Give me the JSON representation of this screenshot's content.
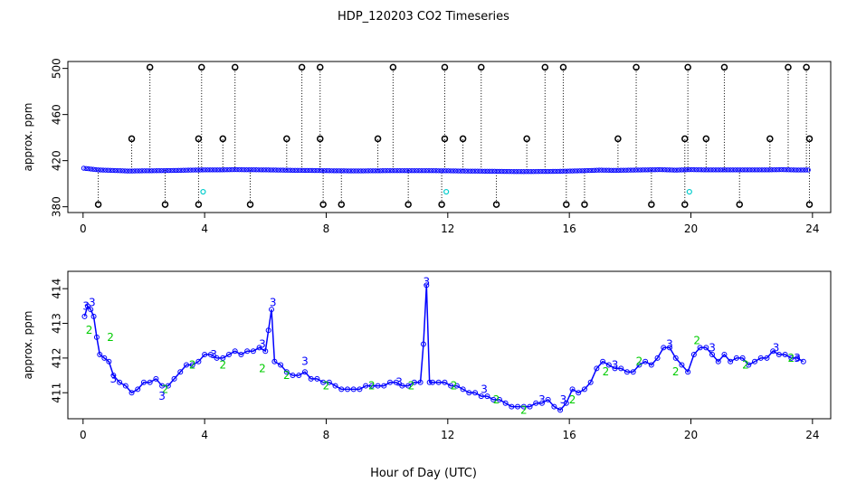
{
  "title": "HDP_120203  CO2 Timeseries",
  "xlabel": "Hour of Day (UTC)",
  "colors": {
    "points": "#0000ff",
    "highlight": "#00cccc",
    "flag2": "#00cc00",
    "flag3": "#0000ff",
    "outlier": "#000000"
  },
  "chart_data": [
    {
      "type": "scatter",
      "title": "",
      "xlabel": "",
      "ylabel": "approx. ppm",
      "xlim": [
        -0.5,
        24.6
      ],
      "ylim": [
        375,
        506
      ],
      "xticks": [
        0,
        4,
        8,
        12,
        16,
        20,
        24
      ],
      "yticks": [
        380,
        420,
        460,
        500
      ],
      "grid": false,
      "series": [
        {
          "values_desc": "main",
          "x": [
            0.0,
            0.5,
            1.0,
            1.5,
            2.0,
            2.5,
            3.0,
            3.5,
            4.0,
            4.5,
            5.0,
            5.5,
            6.0,
            6.5,
            7.0,
            7.5,
            8.0,
            8.5,
            9.0,
            9.5,
            10.0,
            10.5,
            11.0,
            11.5,
            12.0,
            12.5,
            13.0,
            13.5,
            14.0,
            14.5,
            15.0,
            15.5,
            16.0,
            16.5,
            17.0,
            17.5,
            18.0,
            18.5,
            19.0,
            19.5,
            20.0,
            20.5,
            21.0,
            21.5,
            22.0,
            22.5,
            23.0,
            23.5,
            23.8
          ],
          "y": [
            413.5,
            412.0,
            411.5,
            411.0,
            411.2,
            411.3,
            411.5,
            411.8,
            412.0,
            412.0,
            412.2,
            412.1,
            412.0,
            411.8,
            411.6,
            411.5,
            411.3,
            411.2,
            411.1,
            411.2,
            411.3,
            411.3,
            411.3,
            411.3,
            411.2,
            411.0,
            410.9,
            410.8,
            410.6,
            410.5,
            410.6,
            410.7,
            411.0,
            411.3,
            411.8,
            411.6,
            411.8,
            412.0,
            412.2,
            411.8,
            412.2,
            412.0,
            412.0,
            412.0,
            412.0,
            412.0,
            412.2,
            411.9,
            411.9
          ]
        }
      ],
      "outliers_high": [
        2.2,
        3.9,
        5.0,
        7.2,
        7.8,
        10.2,
        11.9,
        13.1,
        15.2,
        15.8,
        18.2,
        19.9,
        21.1,
        23.2,
        23.8
      ],
      "outliers_mid": [
        1.6,
        3.8,
        4.6,
        6.7,
        7.8,
        9.7,
        11.9,
        12.5,
        14.6,
        17.6,
        19.8,
        20.5,
        22.6,
        23.9
      ],
      "outliers_low": [
        0.5,
        2.7,
        3.8,
        5.5,
        7.9,
        8.5,
        10.7,
        11.8,
        13.6,
        15.9,
        16.5,
        18.7,
        19.8,
        21.6,
        23.9
      ],
      "cyan_points": [
        [
          3.95,
          393
        ],
        [
          11.95,
          393
        ],
        [
          19.95,
          393
        ]
      ],
      "high_value": 501,
      "mid_value": 439,
      "low_value": 382
    },
    {
      "type": "scatter",
      "title": "",
      "xlabel": "Hour of Day (UTC)",
      "ylabel": "approx. ppm",
      "xlim": [
        -0.5,
        24.6
      ],
      "ylim": [
        410.25,
        414.5
      ],
      "xticks": [
        0,
        4,
        8,
        12,
        16,
        20,
        24
      ],
      "yticks": [
        411,
        412,
        413,
        414
      ],
      "grid": false,
      "series": [
        {
          "x": [
            0.05,
            0.15,
            0.25,
            0.35,
            0.45,
            0.55,
            0.7,
            0.85,
            1.0,
            1.2,
            1.4,
            1.6,
            1.8,
            2.0,
            2.2,
            2.4,
            2.6,
            2.8,
            3.0,
            3.2,
            3.4,
            3.6,
            3.8,
            4.0,
            4.2,
            4.4,
            4.6,
            4.8,
            5.0,
            5.2,
            5.4,
            5.6,
            5.8,
            6.0,
            6.1,
            6.2,
            6.3,
            6.5,
            6.7,
            6.9,
            7.1,
            7.3,
            7.5,
            7.7,
            7.9,
            8.1,
            8.3,
            8.5,
            8.7,
            8.9,
            9.1,
            9.3,
            9.5,
            9.7,
            9.9,
            10.1,
            10.3,
            10.5,
            10.7,
            10.9,
            11.1,
            11.2,
            11.3,
            11.4,
            11.5,
            11.7,
            11.9,
            12.1,
            12.3,
            12.5,
            12.7,
            12.9,
            13.1,
            13.3,
            13.5,
            13.7,
            13.9,
            14.1,
            14.3,
            14.5,
            14.7,
            14.9,
            15.1,
            15.3,
            15.5,
            15.7,
            15.9,
            16.1,
            16.3,
            16.5,
            16.7,
            16.9,
            17.1,
            17.3,
            17.5,
            17.7,
            17.9,
            18.1,
            18.3,
            18.5,
            18.7,
            18.9,
            19.1,
            19.3,
            19.5,
            19.7,
            19.9,
            20.1,
            20.3,
            20.5,
            20.7,
            20.9,
            21.1,
            21.3,
            21.5,
            21.7,
            21.9,
            22.1,
            22.3,
            22.5,
            22.7,
            22.9,
            23.1,
            23.3,
            23.5,
            23.7
          ],
          "y": [
            413.2,
            413.5,
            413.4,
            413.2,
            412.6,
            412.1,
            412.0,
            411.9,
            411.5,
            411.3,
            411.2,
            411.0,
            411.1,
            411.3,
            411.3,
            411.4,
            411.2,
            411.2,
            411.4,
            411.6,
            411.8,
            411.8,
            411.9,
            412.1,
            412.1,
            412.0,
            412.0,
            412.1,
            412.2,
            412.1,
            412.2,
            412.2,
            412.3,
            412.2,
            412.8,
            413.4,
            411.9,
            411.8,
            411.6,
            411.5,
            411.5,
            411.6,
            411.4,
            411.4,
            411.3,
            411.3,
            411.2,
            411.1,
            411.1,
            411.1,
            411.1,
            411.2,
            411.2,
            411.2,
            411.2,
            411.3,
            411.3,
            411.2,
            411.2,
            411.3,
            411.3,
            412.4,
            414.1,
            411.3,
            411.3,
            411.3,
            411.3,
            411.2,
            411.2,
            411.1,
            411.0,
            411.0,
            410.9,
            410.9,
            410.8,
            410.8,
            410.7,
            410.6,
            410.6,
            410.6,
            410.6,
            410.7,
            410.7,
            410.8,
            410.6,
            410.5,
            410.7,
            411.1,
            411.0,
            411.1,
            411.3,
            411.7,
            411.9,
            411.8,
            411.7,
            411.7,
            411.6,
            411.6,
            411.8,
            411.9,
            411.8,
            412.0,
            412.3,
            412.3,
            412.0,
            411.8,
            411.6,
            412.1,
            412.3,
            412.3,
            412.1,
            411.9,
            412.1,
            411.9,
            412.0,
            412.0,
            411.8,
            411.9,
            412.0,
            412.0,
            412.2,
            412.1,
            412.1,
            412.0,
            412.0,
            411.9
          ]
        }
      ],
      "label3_points": [
        [
          0.1,
          413.5
        ],
        [
          0.3,
          413.6
        ],
        [
          1.0,
          411.4
        ],
        [
          2.6,
          410.9
        ],
        [
          4.3,
          412.1
        ],
        [
          5.9,
          412.4
        ],
        [
          6.25,
          413.6
        ],
        [
          7.3,
          411.9
        ],
        [
          10.4,
          411.3
        ],
        [
          11.3,
          414.2
        ],
        [
          13.2,
          411.1
        ],
        [
          15.1,
          410.8
        ],
        [
          15.8,
          410.8
        ],
        [
          17.5,
          411.8
        ],
        [
          19.3,
          412.4
        ],
        [
          20.7,
          412.3
        ],
        [
          22.8,
          412.3
        ],
        [
          23.5,
          412.0
        ]
      ],
      "label2_points": [
        [
          0.2,
          412.8
        ],
        [
          0.9,
          412.6
        ],
        [
          2.7,
          411.1
        ],
        [
          3.6,
          411.8
        ],
        [
          4.6,
          411.8
        ],
        [
          5.9,
          411.7
        ],
        [
          6.7,
          411.5
        ],
        [
          8.0,
          411.2
        ],
        [
          9.5,
          411.2
        ],
        [
          10.8,
          411.2
        ],
        [
          12.2,
          411.2
        ],
        [
          13.6,
          410.8
        ],
        [
          14.5,
          410.5
        ],
        [
          16.1,
          410.8
        ],
        [
          17.2,
          411.6
        ],
        [
          18.3,
          411.9
        ],
        [
          19.5,
          411.6
        ],
        [
          20.2,
          412.5
        ],
        [
          21.8,
          411.8
        ],
        [
          23.3,
          412.0
        ]
      ]
    }
  ]
}
